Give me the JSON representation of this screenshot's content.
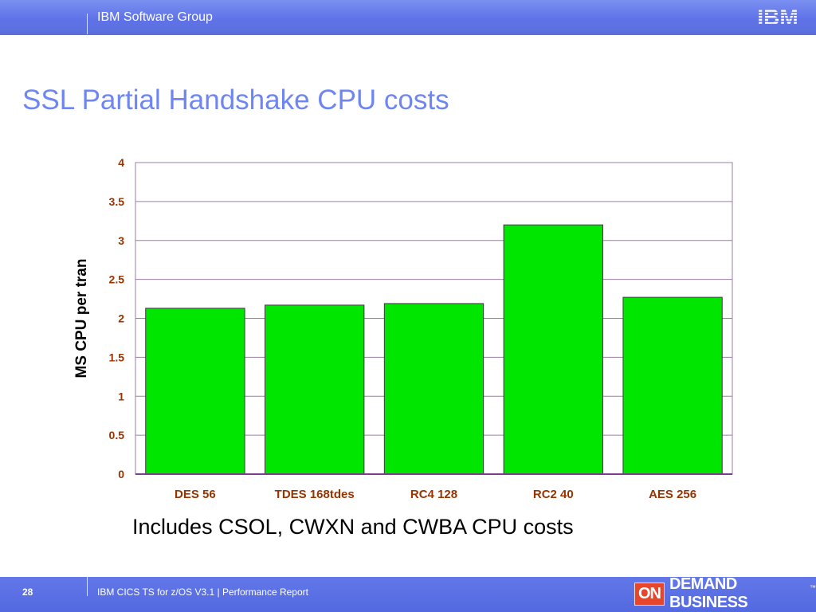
{
  "header": {
    "group": "IBM Software Group",
    "logo_text": "IBM"
  },
  "title": "SSL Partial Handshake CPU costs",
  "caption": "Includes CSOL, CWXN and CWBA CPU costs",
  "footer": {
    "page_number": "28",
    "product": "IBM CICS TS for z/OS V3.1  |  Performance Report",
    "brand_on": "ON",
    "brand_rest": "DEMAND BUSINESS",
    "brand_tm": "™"
  },
  "colors": {
    "bar": "#00e600",
    "axis_label": "#993300",
    "grid": "#9b7fa6",
    "title": "#6f86f2"
  },
  "chart_data": {
    "type": "bar",
    "categories": [
      "DES 56",
      "TDES 168tdes",
      "RC4 128",
      "RC2 40",
      "AES 256"
    ],
    "values": [
      2.13,
      2.17,
      2.19,
      3.2,
      2.27
    ],
    "ylabel": "MS CPU per tran",
    "xlabel": "",
    "ylim": [
      0,
      4
    ],
    "yticks": [
      "0",
      "0.5",
      "1",
      "1.5",
      "2",
      "2.5",
      "3",
      "3.5",
      "4"
    ],
    "grid": true
  }
}
